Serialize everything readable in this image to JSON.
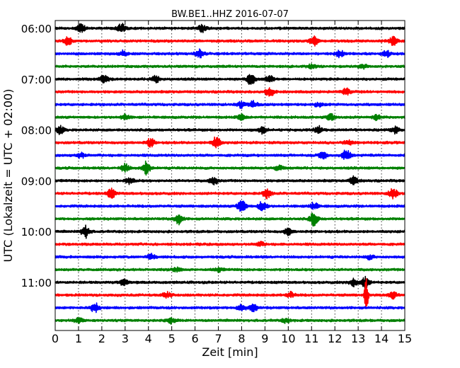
{
  "chart_data": {
    "type": "line",
    "title": "BW.BE1..HHZ 2016-07-07",
    "xlabel": "Zeit  [min]",
    "ylabel": "UTC (Lokalzeit = UTC + 02:00)",
    "xlim": [
      0,
      15
    ],
    "x_ticks": [
      "0",
      "1",
      "2",
      "3",
      "4",
      "5",
      "6",
      "7",
      "8",
      "9",
      "10",
      "11",
      "12",
      "13",
      "14",
      "15"
    ],
    "y_tick_labels": [
      "06:00",
      "07:00",
      "08:00",
      "09:00",
      "10:00",
      "11:00"
    ],
    "grid": "vertical-dotted",
    "colors": [
      "#000000",
      "#ff0000",
      "#0000ff",
      "#008000"
    ],
    "series": [
      {
        "time": "06:00",
        "color": "#000000",
        "events": [
          {
            "t": 1.1,
            "amp": 0.6
          },
          {
            "t": 2.85,
            "amp": 0.7
          },
          {
            "t": 6.3,
            "amp": 0.5
          }
        ]
      },
      {
        "time": "06:15",
        "color": "#ff0000",
        "events": [
          {
            "t": 0.55,
            "amp": 0.6
          },
          {
            "t": 11.1,
            "amp": 0.7
          },
          {
            "t": 14.5,
            "amp": 0.6
          }
        ]
      },
      {
        "time": "06:30",
        "color": "#0000ff",
        "events": [
          {
            "t": 2.9,
            "amp": 0.4
          },
          {
            "t": 6.2,
            "amp": 0.6
          },
          {
            "t": 12.2,
            "amp": 0.5
          },
          {
            "t": 14.2,
            "amp": 0.5
          }
        ]
      },
      {
        "time": "06:45",
        "color": "#008000",
        "events": [
          {
            "t": 11.0,
            "amp": 0.3
          },
          {
            "t": 13.2,
            "amp": 0.3
          }
        ]
      },
      {
        "time": "07:00",
        "color": "#000000",
        "events": [
          {
            "t": 2.1,
            "amp": 0.6
          },
          {
            "t": 4.3,
            "amp": 0.5
          },
          {
            "t": 8.4,
            "amp": 0.8
          },
          {
            "t": 9.2,
            "amp": 0.5
          }
        ]
      },
      {
        "time": "07:15",
        "color": "#ff0000",
        "events": [
          {
            "t": 9.2,
            "amp": 0.7
          },
          {
            "t": 12.5,
            "amp": 0.5
          }
        ]
      },
      {
        "time": "07:30",
        "color": "#0000ff",
        "events": [
          {
            "t": 8.0,
            "amp": 0.5
          },
          {
            "t": 8.5,
            "amp": 0.5
          },
          {
            "t": 11.3,
            "amp": 0.3
          }
        ]
      },
      {
        "time": "07:45",
        "color": "#008000",
        "events": [
          {
            "t": 3.0,
            "amp": 0.4
          },
          {
            "t": 8.0,
            "amp": 0.4
          },
          {
            "t": 11.8,
            "amp": 0.5
          },
          {
            "t": 13.8,
            "amp": 0.4
          }
        ]
      },
      {
        "time": "08:00",
        "color": "#000000",
        "events": [
          {
            "t": 0.2,
            "amp": 0.6
          },
          {
            "t": 8.9,
            "amp": 0.5
          },
          {
            "t": 11.3,
            "amp": 0.5
          },
          {
            "t": 14.6,
            "amp": 0.5
          }
        ]
      },
      {
        "time": "08:15",
        "color": "#ff0000",
        "events": [
          {
            "t": 4.1,
            "amp": 0.6
          },
          {
            "t": 6.9,
            "amp": 0.9
          },
          {
            "t": 12.6,
            "amp": 0.4
          }
        ]
      },
      {
        "time": "08:30",
        "color": "#0000ff",
        "events": [
          {
            "t": 1.1,
            "amp": 0.4
          },
          {
            "t": 11.5,
            "amp": 0.6
          },
          {
            "t": 12.5,
            "amp": 0.8
          }
        ]
      },
      {
        "time": "08:45",
        "color": "#008000",
        "events": [
          {
            "t": 3.0,
            "amp": 0.6
          },
          {
            "t": 3.9,
            "amp": 1.0
          },
          {
            "t": 9.6,
            "amp": 0.4
          }
        ]
      },
      {
        "time": "09:00",
        "color": "#000000",
        "events": [
          {
            "t": 3.2,
            "amp": 0.5
          },
          {
            "t": 6.8,
            "amp": 0.6
          },
          {
            "t": 12.8,
            "amp": 0.6
          }
        ]
      },
      {
        "time": "09:15",
        "color": "#ff0000",
        "events": [
          {
            "t": 2.4,
            "amp": 0.7
          },
          {
            "t": 9.1,
            "amp": 0.7
          },
          {
            "t": 14.5,
            "amp": 0.8
          }
        ]
      },
      {
        "time": "09:30",
        "color": "#0000ff",
        "events": [
          {
            "t": 8.0,
            "amp": 1.0
          },
          {
            "t": 8.9,
            "amp": 0.8
          },
          {
            "t": 11.1,
            "amp": 0.5
          }
        ]
      },
      {
        "time": "09:45",
        "color": "#008000",
        "events": [
          {
            "t": 5.3,
            "amp": 0.8
          },
          {
            "t": 11.1,
            "amp": 1.0
          }
        ]
      },
      {
        "time": "10:00",
        "color": "#000000",
        "events": [
          {
            "t": 1.3,
            "amp": 0.9
          },
          {
            "t": 10.0,
            "amp": 0.5
          }
        ]
      },
      {
        "time": "10:15",
        "color": "#ff0000",
        "events": [
          {
            "t": 8.8,
            "amp": 0.3
          }
        ]
      },
      {
        "time": "10:30",
        "color": "#0000ff",
        "events": [
          {
            "t": 4.1,
            "amp": 0.4
          },
          {
            "t": 13.5,
            "amp": 0.3
          }
        ]
      },
      {
        "time": "10:45",
        "color": "#008000",
        "events": [
          {
            "t": 5.2,
            "amp": 0.3
          },
          {
            "t": 7.0,
            "amp": 0.3
          }
        ]
      },
      {
        "time": "11:00",
        "color": "#000000",
        "events": [
          {
            "t": 2.95,
            "amp": 0.5
          },
          {
            "t": 12.8,
            "amp": 0.6
          },
          {
            "t": 13.3,
            "amp": 0.8
          }
        ]
      },
      {
        "time": "11:15",
        "color": "#ff0000",
        "events": [
          {
            "t": 4.8,
            "amp": 0.4
          },
          {
            "t": 10.1,
            "amp": 0.4
          },
          {
            "t": 13.35,
            "amp": 3.0
          },
          {
            "t": 14.5,
            "amp": 0.5
          }
        ]
      },
      {
        "time": "11:30",
        "color": "#0000ff",
        "events": [
          {
            "t": 1.7,
            "amp": 0.8
          },
          {
            "t": 8.0,
            "amp": 0.5
          },
          {
            "t": 8.5,
            "amp": 0.5
          }
        ]
      },
      {
        "time": "11:45",
        "color": "#008000",
        "events": [
          {
            "t": 1.0,
            "amp": 0.4
          },
          {
            "t": 5.0,
            "amp": 0.4
          },
          {
            "t": 9.9,
            "amp": 0.3
          }
        ]
      }
    ]
  }
}
